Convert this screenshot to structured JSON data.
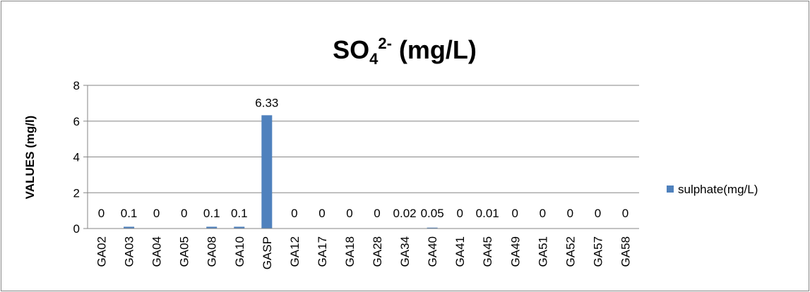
{
  "chart_data": {
    "type": "bar",
    "title": {
      "main": "SO",
      "sub": "4",
      "sup": "2-",
      "rest": " (mg/L)"
    },
    "ylabel": "VALUES (mg/l)",
    "xlabel": "",
    "ylim": [
      0,
      8
    ],
    "yticks": [
      0,
      2,
      4,
      6,
      8
    ],
    "grid": true,
    "legend_position": "right",
    "categories": [
      "GA02",
      "GA03",
      "GA04",
      "GA05",
      "GA08",
      "GA10",
      "GASP",
      "GA12",
      "GA17",
      "GA18",
      "GA28",
      "GA34",
      "GA40",
      "GA41",
      "GA45",
      "GA49",
      "GA51",
      "GA52",
      "GA57",
      "GA58"
    ],
    "series": [
      {
        "name": "sulphate(mg/L)",
        "color": "#4F81BD",
        "values": [
          0,
          0.1,
          0,
          0,
          0.1,
          0.1,
          6.33,
          0,
          0,
          0,
          0,
          0.02,
          0.05,
          0,
          0.01,
          0,
          0,
          0,
          0,
          0
        ],
        "labels": [
          "0",
          "0.1",
          "0",
          "0",
          "0.1",
          "0.1",
          "6.33",
          "0",
          "0",
          "0",
          "0",
          "0.02",
          "0.05",
          "0",
          "0.01",
          "0",
          "0",
          "0",
          "0",
          "0"
        ]
      }
    ]
  }
}
